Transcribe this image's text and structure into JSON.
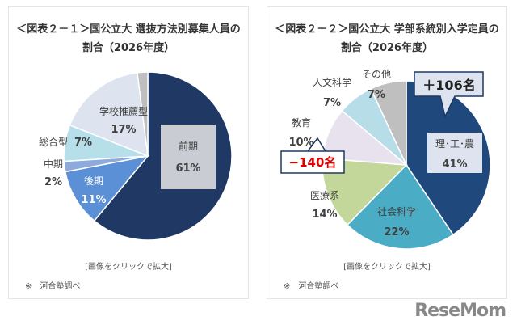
{
  "chart_data": [
    {
      "type": "pie",
      "title": "＜図表２－１＞国公立大 選抜方法別募集人員の割合（2026年度）",
      "slices": [
        {
          "label": "前期",
          "value": 61,
          "color": "#1f3864"
        },
        {
          "label": "後期",
          "value": 11,
          "color": "#5b8fd6"
        },
        {
          "label": "中期",
          "value": 2,
          "color": "#8eaadb"
        },
        {
          "label": "総合型",
          "value": 7,
          "color": "#b7dfe9"
        },
        {
          "label": "学校推薦型",
          "value": 17,
          "color": "#dde4ef"
        },
        {
          "label": "",
          "value": 2,
          "color": "#bfbfbf"
        }
      ]
    },
    {
      "type": "pie",
      "title": "＜図表２－２＞国公立大 学部系統別入学定員の割合（2026年度）",
      "slices": [
        {
          "label": "理･工･農",
          "value": 41,
          "color": "#1f497d"
        },
        {
          "label": "社会科学",
          "value": 22,
          "color": "#4bacc6"
        },
        {
          "label": "医療系",
          "value": 14,
          "color": "#c4d79b"
        },
        {
          "label": "教育",
          "value": 10,
          "color": "#e8e2ef"
        },
        {
          "label": "人文科学",
          "value": 7,
          "color": "#b7dee8"
        },
        {
          "label": "その他",
          "value": 7,
          "color": "#bfbfbf"
        }
      ],
      "annotations": [
        {
          "text": "＋106名",
          "color": "#222222"
        },
        {
          "text": "−140名",
          "color": "#e00000"
        }
      ]
    }
  ],
  "left": {
    "title1": "＜図表２－１＞国公立大 選抜方法別募集人員の",
    "title2": "割合（2026年度）",
    "labels": {
      "zenki": "前期",
      "zenki_pct": "61%",
      "kouki": "後期",
      "kouki_pct": "11%",
      "chuki": "中期",
      "chuki_pct": "2%",
      "sogo": "総合型",
      "sogo_pct": "7%",
      "suisen": "学校推薦型",
      "suisen_pct": "17%"
    },
    "caption": "[画像をクリックで拡大]",
    "source": "※　河合塾調べ"
  },
  "right": {
    "title1": "＜図表２－２＞国公立大 学部系統別入学定員の",
    "title2": "割合（2026年度）",
    "labels": {
      "rikou": "理･工･農",
      "rikou_pct": "41%",
      "shakai": "社会科学",
      "shakai_pct": "22%",
      "iryo": "医療系",
      "iryo_pct": "14%",
      "kyoiku": "教育",
      "kyoiku_pct": "10%",
      "jinbun": "人文科学",
      "jinbun_pct": "7%",
      "sonota": "その他",
      "sonota_pct": "7%",
      "plus": "＋106名",
      "minus": "−140名"
    },
    "caption": "[画像をクリックで拡大]",
    "source": "※　河合塾調べ"
  },
  "logo": "ReseMom"
}
